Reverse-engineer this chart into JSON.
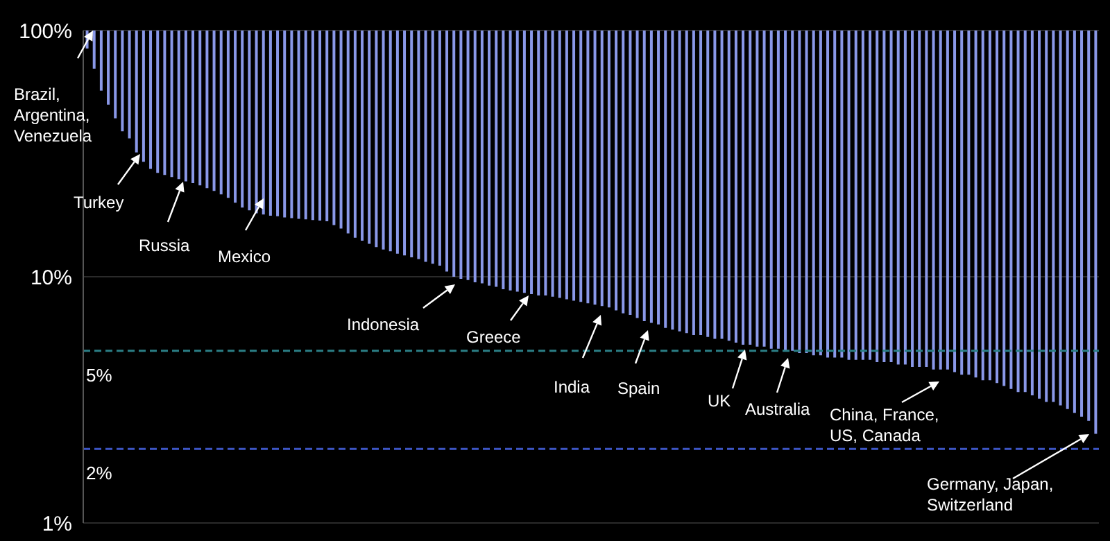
{
  "chart_data": {
    "type": "bar",
    "log": true,
    "grid": "y",
    "legend": false,
    "ylim": [
      1,
      100
    ],
    "yticks": [
      {
        "value": 1,
        "label": "1%"
      },
      {
        "value": 10,
        "label": "10%"
      },
      {
        "value": 100,
        "label": "100%"
      }
    ],
    "categories": [
      null,
      null,
      null,
      null,
      null,
      null,
      null,
      null,
      null,
      null,
      null,
      null,
      null,
      null,
      null,
      null,
      null,
      null,
      null,
      null,
      null,
      null,
      null,
      null,
      null,
      null,
      null,
      null,
      null,
      null,
      null,
      null,
      null,
      null,
      null,
      null,
      null,
      null,
      null,
      null,
      null,
      null,
      null,
      null,
      null,
      null,
      null,
      null,
      null,
      null,
      null,
      null,
      null,
      null,
      null,
      null,
      null,
      null,
      null,
      null,
      null,
      null,
      null,
      null,
      null,
      null,
      null,
      null,
      null,
      null,
      null,
      null,
      null,
      null,
      null,
      null,
      null,
      null,
      null,
      null,
      null,
      null,
      null,
      null,
      null,
      null,
      null,
      null,
      null,
      null,
      null,
      null,
      null,
      null,
      null,
      null,
      null,
      null,
      null,
      null,
      null,
      null,
      null,
      null,
      null,
      null,
      null,
      null,
      null,
      null,
      null,
      null,
      null,
      null,
      null,
      null,
      null,
      null,
      null,
      null,
      null,
      null,
      null,
      null,
      null,
      null,
      null,
      null,
      null,
      null,
      null,
      null,
      null,
      null,
      null,
      null,
      null,
      null,
      null,
      null,
      null,
      null,
      null,
      null
    ],
    "color": "#8a98e8",
    "base": [
      100,
      100,
      100,
      100,
      100,
      100,
      100,
      100,
      100,
      100,
      100,
      100,
      100,
      100,
      100,
      100,
      100,
      100,
      100,
      100,
      100,
      100,
      100,
      100,
      100,
      100,
      100,
      100,
      100,
      100,
      100,
      100,
      100,
      100,
      100,
      100,
      100,
      100,
      100,
      100,
      100,
      100,
      100,
      100,
      100,
      100,
      100,
      100,
      100,
      100,
      100,
      100,
      100,
      100,
      100,
      100,
      100,
      100,
      100,
      100,
      100,
      100,
      100,
      100,
      100,
      100,
      100,
      100,
      100,
      100,
      100,
      100,
      100,
      100,
      100,
      100,
      100,
      100,
      100,
      100,
      100,
      100,
      100,
      100,
      100,
      100,
      100,
      100,
      100,
      100,
      100,
      100,
      100,
      100,
      100,
      100,
      100,
      100,
      100,
      100,
      100,
      100,
      100,
      100,
      100,
      100,
      100,
      100,
      100,
      100,
      100,
      100,
      100,
      100,
      100,
      100,
      100,
      100,
      100,
      100,
      100,
      100,
      100,
      100,
      100,
      100,
      100,
      100,
      100,
      100,
      100,
      100,
      100,
      100,
      100,
      100,
      100,
      100,
      100,
      100,
      100,
      100,
      100,
      100
    ],
    "values": [
      -15.5,
      -30,
      -43,
      -50,
      -56,
      -61,
      -63.5,
      -68,
      -70.7,
      -72.6,
      -73.6,
      -74.1,
      -74.6,
      -75.1,
      -75.6,
      -76,
      -76.5,
      -77.1,
      -77.7,
      -78.4,
      -79.1,
      -80,
      -80.9,
      -81.4,
      -81.9,
      -82.1,
      -82.3,
      -82.4,
      -82.6,
      -82.7,
      -82.8,
      -82.9,
      -83,
      -83.1,
      -83.2,
      -83.8,
      -84.3,
      -85,
      -85.6,
      -86,
      -86.4,
      -86.8,
      -87.1,
      -87.3,
      -87.6,
      -87.8,
      -88,
      -88.2,
      -88.5,
      -88.7,
      -88.9,
      -89.5,
      -90,
      -90.2,
      -90.3,
      -90.5,
      -90.6,
      -90.8,
      -90.9,
      -91.1,
      -91.2,
      -91.3,
      -91.4,
      -91.5,
      -91.6,
      -91.6,
      -91.7,
      -91.8,
      -91.9,
      -92,
      -92.1,
      -92.2,
      -92.3,
      -92.4,
      -92.5,
      -92.7,
      -92.9,
      -93,
      -93.2,
      -93.4,
      -93.5,
      -93.6,
      -93.8,
      -93.9,
      -94,
      -94.1,
      -94.2,
      -94.2,
      -94.3,
      -94.4,
      -94.4,
      -94.5,
      -94.6,
      -94.7,
      -94.7,
      -94.8,
      -94.8,
      -94.9,
      -94.9,
      -95,
      -95,
      -95.1,
      -95.1,
      -95.2,
      -95.2,
      -95.3,
      -95.3,
      -95.3,
      -95.4,
      -95.4,
      -95.4,
      -95.4,
      -95.5,
      -95.5,
      -95.5,
      -95.6,
      -95.6,
      -95.7,
      -95.7,
      -95.7,
      -95.8,
      -95.8,
      -95.8,
      -95.9,
      -96,
      -96,
      -96.1,
      -96.2,
      -96.2,
      -96.3,
      -96.4,
      -96.5,
      -96.6,
      -96.6,
      -96.7,
      -96.8,
      -96.9,
      -96.9,
      -97,
      -97.1,
      -97.2,
      -97.3,
      -97.4,
      -97.7
    ],
    "ref_lines": [
      {
        "axis": "y",
        "value": 5,
        "label": "5%",
        "color": "#2b7f86",
        "line_style": "dashed"
      },
      {
        "axis": "y",
        "value": 2,
        "label": "2%",
        "color": "#3d55c4",
        "line_style": "dashed"
      }
    ],
    "annotations": [
      "Brazil,\nArgentina,\nVenezuela",
      "Turkey",
      "Russia",
      "Mexico",
      "Indonesia",
      "Greece",
      "India",
      "Spain",
      "UK",
      "Australia",
      "China, France,\nUS, Canada",
      "Germany, Japan,\nSwitzerland"
    ]
  }
}
